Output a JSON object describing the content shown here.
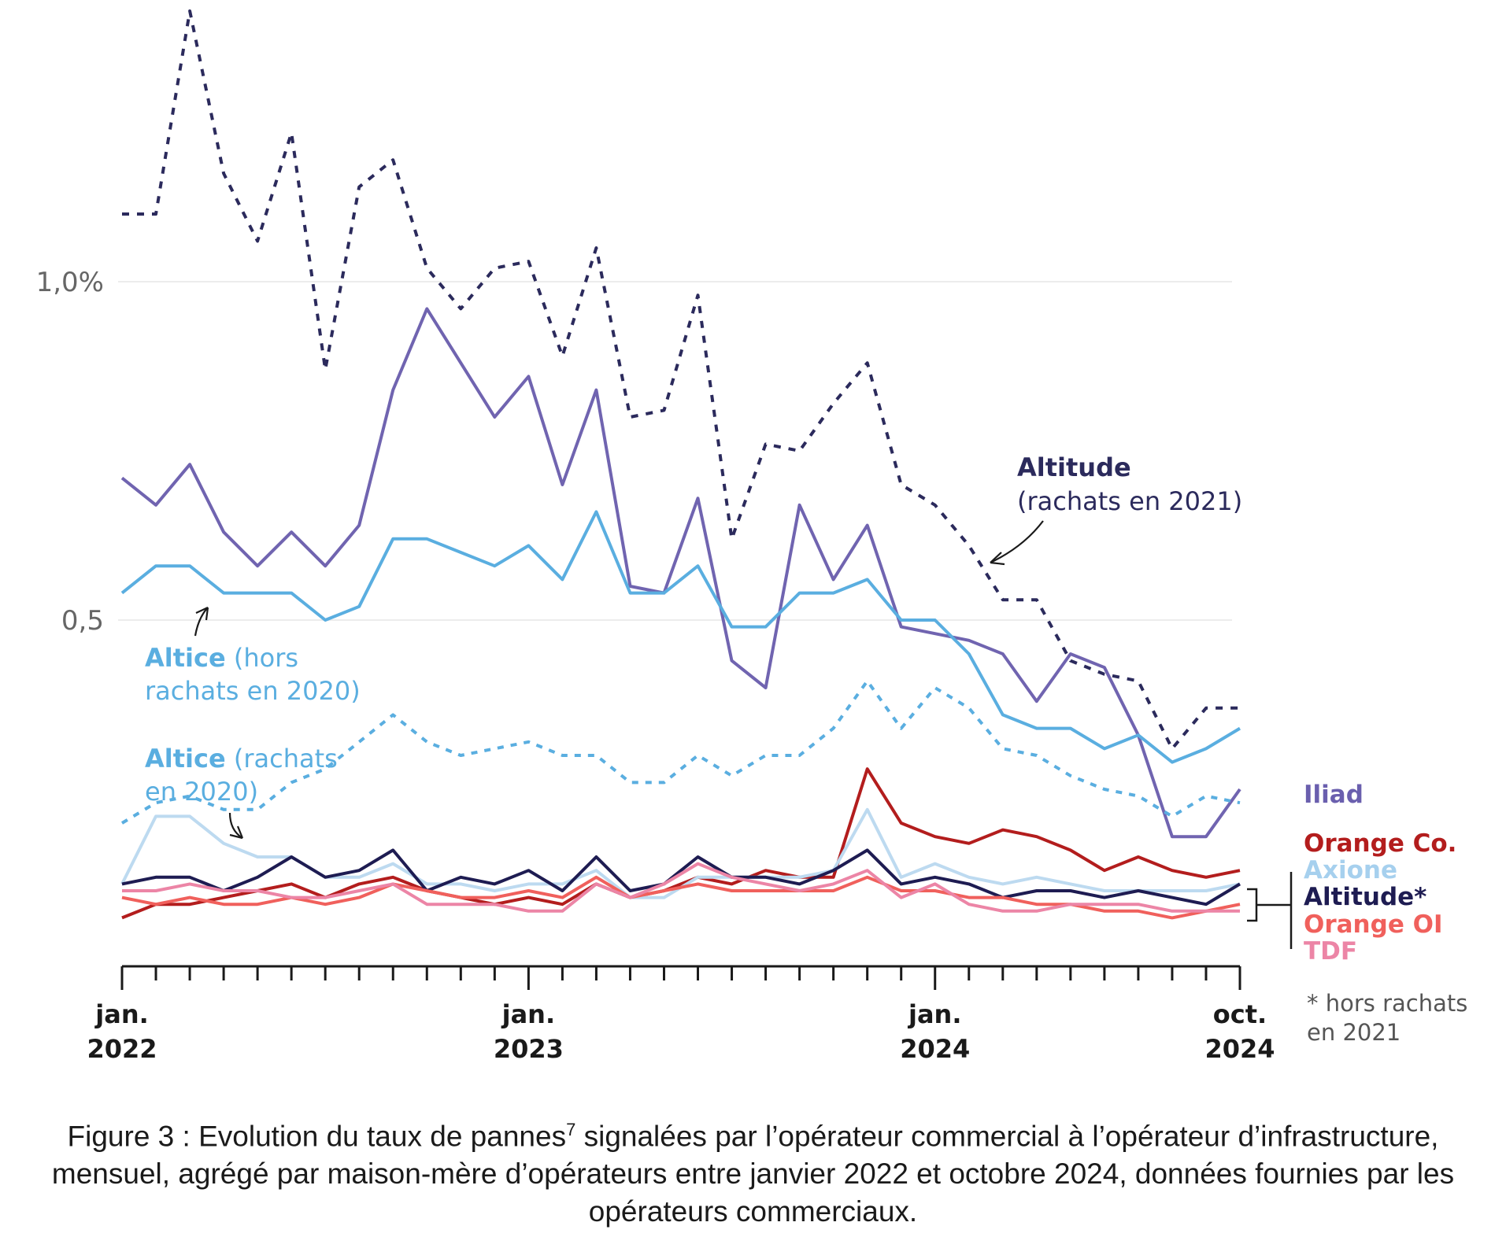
{
  "chart_data": {
    "type": "line",
    "y_ticks": [
      {
        "value": 1.0,
        "label": "1,0%"
      },
      {
        "value": 0.5,
        "label": "0,5"
      }
    ],
    "x_ticks": [
      {
        "index": 0,
        "line1": "jan.",
        "line2": "2022"
      },
      {
        "index": 12,
        "line1": "jan.",
        "line2": "2023"
      },
      {
        "index": 24,
        "line1": "jan.",
        "line2": "2024"
      },
      {
        "index": 33,
        "line1": "oct.",
        "line2": "2024"
      }
    ],
    "x_start": "2022-01",
    "x_end": "2024-10",
    "ylim": [
      0,
      1.42
    ],
    "grid": true,
    "series": [
      {
        "name": "Altitude (rachats en 2021)",
        "color": "#2b2a5c",
        "dash": "9,10",
        "values": [
          1.1,
          1.1,
          1.4,
          1.16,
          1.06,
          1.22,
          0.87,
          1.14,
          1.18,
          1.02,
          0.96,
          1.02,
          1.03,
          0.89,
          1.05,
          0.8,
          0.81,
          0.98,
          0.62,
          0.76,
          0.75,
          0.82,
          0.88,
          0.7,
          0.67,
          0.61,
          0.53,
          0.53,
          0.44,
          0.42,
          0.41,
          0.31,
          0.37,
          0.37
        ]
      },
      {
        "name": "Iliad",
        "color": "#7064b0",
        "dash": "",
        "values": [
          0.71,
          0.67,
          0.73,
          0.63,
          0.58,
          0.63,
          0.58,
          0.64,
          0.84,
          0.96,
          0.88,
          0.8,
          0.86,
          0.7,
          0.84,
          0.55,
          0.54,
          0.68,
          0.44,
          0.4,
          0.67,
          0.56,
          0.64,
          0.49,
          0.48,
          0.47,
          0.45,
          0.38,
          0.45,
          0.43,
          0.33,
          0.18,
          0.18,
          0.25
        ]
      },
      {
        "name": "Altice (hors rachats en 2020)",
        "color": "#5aaee0",
        "dash": "",
        "values": [
          0.54,
          0.58,
          0.58,
          0.54,
          0.54,
          0.54,
          0.5,
          0.52,
          0.62,
          0.62,
          0.6,
          0.58,
          0.61,
          0.56,
          0.66,
          0.54,
          0.54,
          0.58,
          0.49,
          0.49,
          0.54,
          0.54,
          0.56,
          0.5,
          0.5,
          0.45,
          0.36,
          0.34,
          0.34,
          0.31,
          0.33,
          0.29,
          0.31,
          0.34
        ]
      },
      {
        "name": "Altice (rachats en 2020)",
        "color": "#5aaee0",
        "dash": "8,9",
        "values": [
          0.2,
          0.23,
          0.24,
          0.22,
          0.22,
          0.26,
          0.28,
          0.32,
          0.36,
          0.32,
          0.3,
          0.31,
          0.32,
          0.3,
          0.3,
          0.26,
          0.26,
          0.3,
          0.27,
          0.3,
          0.3,
          0.34,
          0.41,
          0.34,
          0.4,
          0.37,
          0.31,
          0.3,
          0.27,
          0.25,
          0.24,
          0.21,
          0.24,
          0.23
        ]
      },
      {
        "name": "Orange Co.",
        "color": "#b31d1d",
        "dash": "",
        "values": [
          0.06,
          0.08,
          0.08,
          0.09,
          0.1,
          0.11,
          0.09,
          0.11,
          0.12,
          0.1,
          0.09,
          0.08,
          0.09,
          0.08,
          0.11,
          0.09,
          0.1,
          0.12,
          0.11,
          0.13,
          0.12,
          0.12,
          0.28,
          0.2,
          0.18,
          0.17,
          0.19,
          0.18,
          0.16,
          0.13,
          0.15,
          0.13,
          0.12,
          0.13
        ]
      },
      {
        "name": "Axione",
        "color": "#bddaf0",
        "dash": "",
        "values": [
          0.11,
          0.21,
          0.21,
          0.17,
          0.15,
          0.15,
          0.12,
          0.12,
          0.14,
          0.11,
          0.11,
          0.1,
          0.11,
          0.11,
          0.13,
          0.09,
          0.09,
          0.12,
          0.12,
          0.12,
          0.12,
          0.13,
          0.22,
          0.12,
          0.14,
          0.12,
          0.11,
          0.12,
          0.11,
          0.1,
          0.1,
          0.1,
          0.1,
          0.11
        ]
      },
      {
        "name": "Altitude*",
        "color": "#1e1c52",
        "dash": "",
        "values": [
          0.11,
          0.12,
          0.12,
          0.1,
          0.12,
          0.15,
          0.12,
          0.13,
          0.16,
          0.1,
          0.12,
          0.11,
          0.13,
          0.1,
          0.15,
          0.1,
          0.11,
          0.15,
          0.12,
          0.12,
          0.11,
          0.13,
          0.16,
          0.11,
          0.12,
          0.11,
          0.09,
          0.1,
          0.1,
          0.09,
          0.1,
          0.09,
          0.08,
          0.11
        ]
      },
      {
        "name": "Orange OI",
        "color": "#f0605c",
        "dash": "",
        "values": [
          0.09,
          0.08,
          0.09,
          0.08,
          0.08,
          0.09,
          0.08,
          0.09,
          0.11,
          0.1,
          0.09,
          0.09,
          0.1,
          0.09,
          0.12,
          0.09,
          0.1,
          0.11,
          0.1,
          0.1,
          0.1,
          0.1,
          0.12,
          0.1,
          0.1,
          0.09,
          0.09,
          0.08,
          0.08,
          0.07,
          0.07,
          0.06,
          0.07,
          0.08
        ]
      },
      {
        "name": "TDF",
        "color": "#ec85a6",
        "dash": "",
        "values": [
          0.1,
          0.1,
          0.11,
          0.1,
          0.1,
          0.09,
          0.09,
          0.1,
          0.11,
          0.08,
          0.08,
          0.08,
          0.07,
          0.07,
          0.11,
          0.09,
          0.11,
          0.14,
          0.12,
          0.11,
          0.1,
          0.11,
          0.13,
          0.09,
          0.11,
          0.08,
          0.07,
          0.07,
          0.08,
          0.08,
          0.08,
          0.07,
          0.07,
          0.07
        ]
      }
    ]
  },
  "annotations": {
    "altitude_title": "Altitude",
    "altitude_sub": "(rachats en 2021)",
    "altice_hors_bold": "Altice",
    "altice_hors_rest1": " (hors",
    "altice_hors_rest2": "rachats en 2020)",
    "altice_rach_bold": "Altice",
    "altice_rach_rest1": " (rachats",
    "altice_rach_rest2": "en 2020)"
  },
  "legend": {
    "iliad": {
      "label": "Iliad",
      "color": "#6a5fae"
    },
    "orange_co": {
      "label": "Orange Co.",
      "color": "#b31d1d"
    },
    "axione": {
      "label": "Axione",
      "color": "#a6d0ee"
    },
    "altitude": {
      "label": "Altitude*",
      "color": "#1e1c52"
    },
    "orange_oi": {
      "label": "Orange OI",
      "color": "#f0605c"
    },
    "tdf": {
      "label": "TDF",
      "color": "#ec85a6"
    },
    "note1": "* hors rachats",
    "note2": "en 2021"
  },
  "caption": {
    "part1": "Figure 3 : Evolution du taux de pannes",
    "sup": "7",
    "part2": " signalées par l’opérateur commercial à l’opérateur d’infrastructure, mensuel, agrégé par maison-mère d’opérateurs entre janvier 2022 et octobre 2024, données fournies par les opérateurs commerciaux."
  }
}
